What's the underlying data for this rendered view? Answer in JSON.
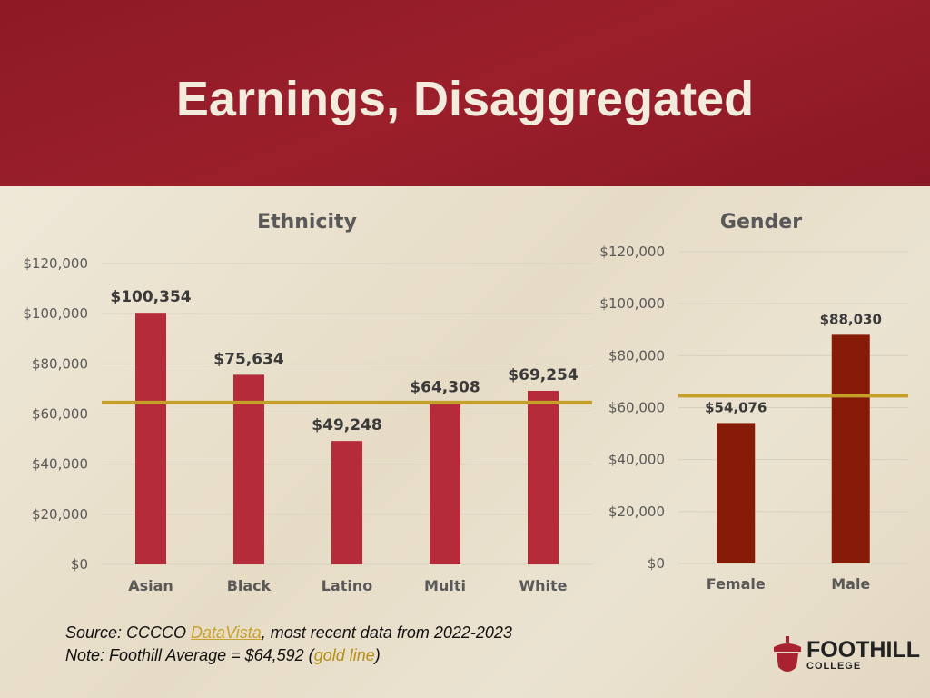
{
  "title": "Earnings, Disaggregated",
  "colors": {
    "ethnicity_bar": "#b62b3a",
    "gender_bar": "#861c08",
    "avg_line": "#c5a028"
  },
  "chart_data": [
    {
      "type": "bar",
      "title": "Ethnicity",
      "categories": [
        "Asian",
        "Black",
        "Latino",
        "Multi",
        "White"
      ],
      "values": [
        100354,
        75634,
        49248,
        64308,
        69254
      ],
      "data_labels": [
        "$100,354",
        "$75,634",
        "$49,248",
        "$64,308",
        "$69,254"
      ],
      "ylim": [
        0,
        120000
      ],
      "yticks": [
        0,
        20000,
        40000,
        60000,
        80000,
        100000,
        120000
      ],
      "ytick_labels": [
        "$0",
        "$20,000",
        "$40,000",
        "$60,000",
        "$80,000",
        "$100,000",
        "$120,000"
      ],
      "reference_line": 64592,
      "grid": true
    },
    {
      "type": "bar",
      "title": "Gender",
      "categories": [
        "Female",
        "Male"
      ],
      "values": [
        54076,
        88030
      ],
      "data_labels": [
        "$54,076",
        "$88,030"
      ],
      "ylim": [
        0,
        120000
      ],
      "yticks": [
        0,
        20000,
        40000,
        60000,
        80000,
        100000,
        120000
      ],
      "ytick_labels": [
        "$0",
        "$20,000",
        "$40,000",
        "$60,000",
        "$80,000",
        "$100,000",
        "$120,000"
      ],
      "reference_line": 64592,
      "grid": true
    }
  ],
  "notes": {
    "source_prefix": "Source: CCCCO ",
    "source_link": "DataVista",
    "source_suffix": ", most recent data from 2022-2023",
    "note_prefix": "Note: Foothill Average = $64,592 (",
    "note_gold": "gold line",
    "note_suffix": ")"
  },
  "logo": {
    "name": "FOOTHILL",
    "sub": "COLLEGE",
    "icon": "acorn-icon"
  }
}
